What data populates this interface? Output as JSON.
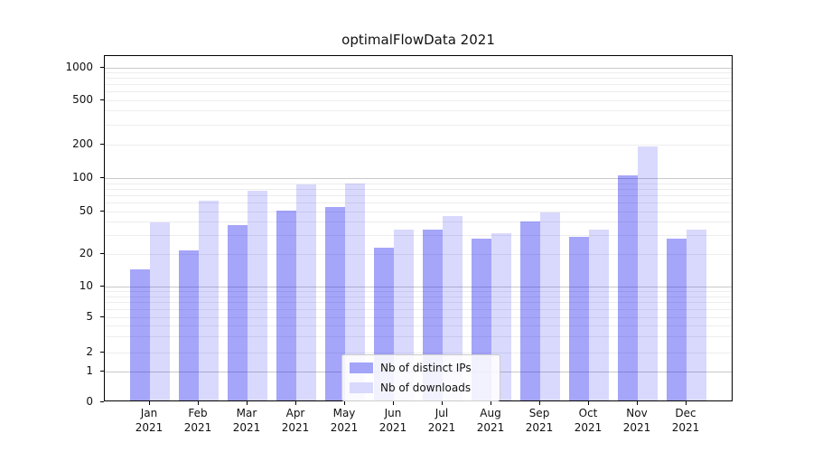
{
  "chart_data": {
    "type": "bar",
    "title": "optimalFlowData 2021",
    "categories": [
      "Jan 2021",
      "Feb 2021",
      "Mar 2021",
      "Apr 2021",
      "May 2021",
      "Jun 2021",
      "Jul 2021",
      "Aug 2021",
      "Sep 2021",
      "Oct 2021",
      "Nov 2021",
      "Dec 2021"
    ],
    "x_tick_line1": [
      "Jan",
      "Feb",
      "Mar",
      "Apr",
      "May",
      "Jun",
      "Jul",
      "Aug",
      "Sep",
      "Oct",
      "Nov",
      "Dec"
    ],
    "x_tick_line2": [
      "2021",
      "2021",
      "2021",
      "2021",
      "2021",
      "2021",
      "2021",
      "2021",
      "2021",
      "2021",
      "2021",
      "2021"
    ],
    "series": [
      {
        "name": "Nb of distinct IPs",
        "key": "distinct-ips",
        "color": "rgba(10,10,240,0.37)",
        "legend_color": "#a4a4f9",
        "values": [
          14,
          21,
          36,
          50,
          53,
          22,
          33,
          27,
          39,
          28,
          102,
          27
        ]
      },
      {
        "name": "Nb of downloads",
        "key": "downloads",
        "color": "rgba(10,10,240,0.155)",
        "legend_color": "#d9d9fd",
        "values": [
          38,
          61,
          75,
          85,
          87,
          33,
          44,
          30,
          48,
          33,
          185,
          33
        ]
      }
    ],
    "yscale": "symlog",
    "y_ticks": [
      0,
      1,
      2,
      5,
      10,
      20,
      50,
      100,
      200,
      500,
      1000
    ],
    "ylim": [
      0,
      1270
    ],
    "xlabel": "",
    "ylabel": "",
    "grid": true,
    "legend_position": "lower center"
  },
  "colors": {
    "grid_minor": "#ededed",
    "grid_major": "#c9c9c9",
    "axis": "#000000",
    "text": "#111111",
    "background": "#ffffff"
  }
}
